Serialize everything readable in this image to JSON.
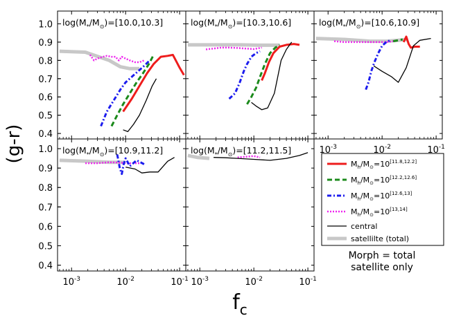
{
  "figure": {
    "ylabel": "(g-r)",
    "xlabel_main": "f",
    "xlabel_sub": "c",
    "note_line1": "Morph = total",
    "note_line2": "satellite only"
  },
  "axes": {
    "y_ticks": [
      0.4,
      0.5,
      0.6,
      0.7,
      0.8,
      0.9,
      1.0
    ],
    "y_tick_labels": [
      "0.4",
      "0.5",
      "0.6",
      "0.7",
      "0.8",
      "0.9",
      "1.0"
    ],
    "x_ticks": [
      0.001,
      0.01,
      0.1
    ],
    "x_tick_base": "10",
    "x_tick_exps": [
      "-3",
      "-2",
      "-1"
    ],
    "xlim": [
      0.00055,
      0.13
    ],
    "ylim": [
      0.37,
      1.07
    ],
    "ylim_right_top": [
      0.37,
      1.05
    ]
  },
  "legend": {
    "entries": [
      {
        "series": "h1",
        "base": "M",
        "sub": "h",
        "mid": "/M",
        "sun": "⊙",
        "eq": "=10",
        "sup": "[11.8,12.2]"
      },
      {
        "series": "h2",
        "base": "M",
        "sub": "h",
        "mid": "/M",
        "sun": "⊙",
        "eq": "=10",
        "sup": "[12.2,12.6]"
      },
      {
        "series": "h3",
        "base": "M",
        "sub": "h",
        "mid": "/M",
        "sun": "⊙",
        "eq": "=10",
        "sup": "[12.6,13]"
      },
      {
        "series": "h4",
        "base": "M",
        "sub": "h",
        "mid": "/M",
        "sun": "⊙",
        "eq": "=10",
        "sup": "[13,14]"
      },
      {
        "series": "central",
        "text": "central"
      },
      {
        "series": "sat",
        "text": "satellilte (total)"
      }
    ]
  },
  "series_styles": {
    "h1": {
      "color": "#ee1c1c",
      "dash": "",
      "width": 3
    },
    "h2": {
      "color": "#1b8a1b",
      "dash": "7,4",
      "width": 3
    },
    "h3": {
      "color": "#1c1cee",
      "dash": "6,3,2,3",
      "width": 3
    },
    "h4": {
      "color": "#ee22ee",
      "dash": "2,2",
      "width": 2.5
    },
    "central": {
      "color": "#000000",
      "dash": "",
      "width": 1.3
    },
    "sat": {
      "color": "#c8c8c8",
      "dash": "",
      "width": 5
    }
  },
  "chart_data": [
    {
      "type": "line",
      "title_prefix": "log(M",
      "title_sub": "*",
      "title_mid": "/M",
      "title_sun": "⊙",
      "title_range": ")=[10.0,10.3]",
      "series": [
        {
          "name": "satellite (total)",
          "key": "sat",
          "x": [
            0.0006,
            0.0018,
            0.005,
            0.008,
            0.012,
            0.018
          ],
          "y": [
            0.85,
            0.845,
            0.8,
            0.765,
            0.755,
            0.755
          ]
        },
        {
          "name": "M_h=10^[13,14]",
          "key": "h4",
          "x": [
            0.0022,
            0.0026,
            0.003,
            0.0038,
            0.0045,
            0.0055,
            0.0065,
            0.0075,
            0.0085,
            0.01,
            0.012,
            0.015,
            0.018,
            0.022
          ],
          "y": [
            0.83,
            0.8,
            0.81,
            0.82,
            0.825,
            0.82,
            0.82,
            0.8,
            0.82,
            0.81,
            0.8,
            0.79,
            0.79,
            0.8
          ]
        },
        {
          "name": "M_h=10^[12.6,13]",
          "key": "h3",
          "x": [
            0.0035,
            0.0045,
            0.006,
            0.008,
            0.01,
            0.013,
            0.017,
            0.022,
            0.028
          ],
          "y": [
            0.44,
            0.52,
            0.58,
            0.64,
            0.68,
            0.71,
            0.74,
            0.77,
            0.8
          ]
        },
        {
          "name": "M_h=10^[12.2,12.6]",
          "key": "h2",
          "x": [
            0.0055,
            0.007,
            0.009,
            0.012,
            0.016,
            0.021,
            0.027,
            0.033
          ],
          "y": [
            0.44,
            0.5,
            0.56,
            0.62,
            0.68,
            0.73,
            0.78,
            0.83
          ]
        },
        {
          "name": "M_h=10^[11.8,12.2]",
          "key": "h1",
          "x": [
            0.009,
            0.013,
            0.018,
            0.025,
            0.033,
            0.045,
            0.06,
            0.075,
            0.1,
            0.12
          ],
          "y": [
            0.52,
            0.59,
            0.66,
            0.73,
            0.78,
            0.82,
            0.825,
            0.83,
            0.76,
            0.72
          ]
        },
        {
          "name": "central",
          "key": "central",
          "x": [
            0.009,
            0.011,
            0.014,
            0.018,
            0.024,
            0.031,
            0.037
          ],
          "y": [
            0.42,
            0.41,
            0.45,
            0.5,
            0.58,
            0.66,
            0.7
          ]
        }
      ]
    },
    {
      "type": "line",
      "title_prefix": "log(M",
      "title_sub": "*",
      "title_mid": "/M",
      "title_sun": "⊙",
      "title_range": ")=[10.3,10.6]",
      "series": [
        {
          "name": "satellite (total)",
          "key": "sat",
          "x": [
            0.0006,
            0.002,
            0.006,
            0.012,
            0.02,
            0.03
          ],
          "y": [
            0.885,
            0.885,
            0.885,
            0.883,
            0.883,
            0.883
          ]
        },
        {
          "name": "M_h=10^[13,14]",
          "key": "h4",
          "x": [
            0.0013,
            0.0018,
            0.0025,
            0.0035,
            0.005,
            0.007,
            0.01,
            0.014
          ],
          "y": [
            0.86,
            0.865,
            0.87,
            0.87,
            0.868,
            0.865,
            0.862,
            0.87
          ]
        },
        {
          "name": "M_h=10^[12.6,13]",
          "key": "h3",
          "x": [
            0.0035,
            0.0045,
            0.0055,
            0.0065,
            0.0075,
            0.009,
            0.011,
            0.013
          ],
          "y": [
            0.59,
            0.62,
            0.68,
            0.74,
            0.78,
            0.82,
            0.84,
            0.85
          ]
        },
        {
          "name": "M_h=10^[12.2,12.6]",
          "key": "h2",
          "x": [
            0.0075,
            0.009,
            0.011,
            0.013,
            0.016,
            0.02,
            0.025,
            0.03
          ],
          "y": [
            0.56,
            0.6,
            0.65,
            0.71,
            0.78,
            0.84,
            0.87,
            0.885
          ]
        },
        {
          "name": "M_h=10^[11.8,12.2]",
          "key": "h1",
          "x": [
            0.014,
            0.016,
            0.019,
            0.023,
            0.03,
            0.04,
            0.055,
            0.07
          ],
          "y": [
            0.69,
            0.73,
            0.79,
            0.84,
            0.875,
            0.885,
            0.89,
            0.885
          ]
        },
        {
          "name": "central",
          "key": "central",
          "x": [
            0.009,
            0.011,
            0.014,
            0.018,
            0.024,
            0.032,
            0.04,
            0.05
          ],
          "y": [
            0.57,
            0.55,
            0.53,
            0.54,
            0.62,
            0.8,
            0.86,
            0.9
          ]
        }
      ]
    },
    {
      "type": "line",
      "title_prefix": "log(M",
      "title_sub": "*",
      "title_mid": "/M",
      "title_sun": "⊙",
      "title_range": ")=[10.6,10.9]",
      "series": [
        {
          "name": "satellite (total)",
          "key": "sat",
          "x": [
            0.0006,
            0.002,
            0.006,
            0.012,
            0.02,
            0.03
          ],
          "y": [
            0.92,
            0.915,
            0.905,
            0.905,
            0.91,
            0.915
          ]
        },
        {
          "name": "M_h=10^[13,14]",
          "key": "h4",
          "x": [
            0.0013,
            0.002,
            0.003,
            0.005,
            0.008,
            0.012,
            0.016
          ],
          "y": [
            0.905,
            0.9,
            0.9,
            0.9,
            0.9,
            0.9,
            0.905
          ]
        },
        {
          "name": "M_h=10^[12.6,13]",
          "key": "h3",
          "x": [
            0.005,
            0.0056,
            0.0063,
            0.0072,
            0.0085,
            0.01,
            0.012,
            0.014
          ],
          "y": [
            0.64,
            0.68,
            0.74,
            0.79,
            0.84,
            0.88,
            0.9,
            0.91
          ]
        },
        {
          "name": "M_h=10^[12.2,12.6]",
          "key": "h2",
          "x": [
            0.016,
            0.02,
            0.024
          ],
          "y": [
            0.905,
            0.91,
            0.915
          ]
        },
        {
          "name": "M_h=10^[11.8,12.2]",
          "key": "h1",
          "x": [
            0.025,
            0.028,
            0.031,
            0.034,
            0.04,
            0.05
          ],
          "y": [
            0.9,
            0.93,
            0.89,
            0.87,
            0.875,
            0.875
          ]
        },
        {
          "name": "central",
          "key": "central",
          "x": [
            0.007,
            0.01,
            0.015,
            0.02,
            0.028,
            0.038,
            0.05,
            0.08
          ],
          "y": [
            0.77,
            0.74,
            0.71,
            0.68,
            0.76,
            0.88,
            0.91,
            0.92
          ]
        }
      ]
    },
    {
      "type": "line",
      "title_prefix": "log(M",
      "title_sub": "*",
      "title_mid": "/M",
      "title_sun": "⊙",
      "title_range": ")=[10.9,11.2]",
      "series": [
        {
          "name": "satellite (total)",
          "key": "sat",
          "x": [
            0.0006,
            0.002,
            0.005,
            0.01
          ],
          "y": [
            0.94,
            0.935,
            0.93,
            0.93
          ]
        },
        {
          "name": "M_h=10^[13,14]",
          "key": "h4",
          "x": [
            0.0018,
            0.003,
            0.005,
            0.008,
            0.012,
            0.018
          ],
          "y": [
            0.925,
            0.925,
            0.93,
            0.928,
            0.925,
            0.925
          ]
        },
        {
          "name": "M_h=10^[12.6,13]",
          "key": "h3",
          "x": [
            0.007,
            0.0078,
            0.0085,
            0.0092,
            0.01,
            0.012,
            0.016,
            0.022
          ],
          "y": [
            0.97,
            0.9,
            0.87,
            0.92,
            0.95,
            0.91,
            0.94,
            0.92
          ]
        },
        {
          "name": "central",
          "key": "central",
          "x": [
            0.01,
            0.015,
            0.02,
            0.028,
            0.04,
            0.06,
            0.08
          ],
          "y": [
            0.905,
            0.895,
            0.875,
            0.88,
            0.88,
            0.935,
            0.955
          ]
        }
      ]
    },
    {
      "type": "line",
      "title_prefix": "log(M",
      "title_sub": "*",
      "title_mid": "/M",
      "title_sun": "⊙",
      "title_range": ")=[11.2,11.5]",
      "series": [
        {
          "name": "satellite (total)",
          "key": "sat",
          "x": [
            0.0006,
            0.0009,
            0.0015
          ],
          "y": [
            0.965,
            0.955,
            0.95
          ]
        },
        {
          "name": "M_h=10^[13,14]",
          "key": "h4",
          "x": [
            0.005,
            0.007,
            0.01,
            0.013
          ],
          "y": [
            0.955,
            0.958,
            0.962,
            0.955
          ]
        },
        {
          "name": "central",
          "key": "central",
          "x": [
            0.0018,
            0.003,
            0.005,
            0.01,
            0.02,
            0.04,
            0.07,
            0.1
          ],
          "y": [
            0.955,
            0.953,
            0.95,
            0.945,
            0.94,
            0.95,
            0.965,
            0.98
          ]
        }
      ]
    }
  ]
}
